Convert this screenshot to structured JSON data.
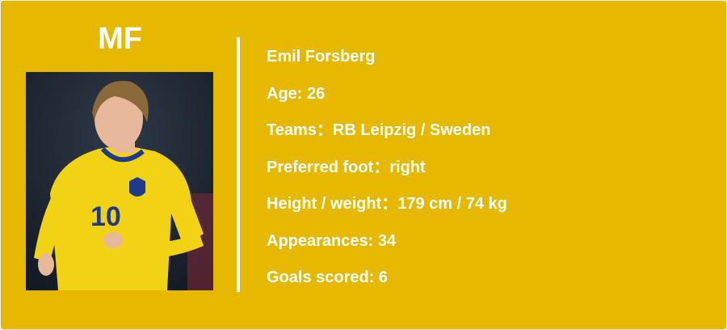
{
  "player": {
    "position": "MF",
    "name": "Emil Forsberg",
    "age": "Age: 26",
    "teams": "Teams：RB Leipzig / Sweden",
    "preferred_foot": "Preferred foot：right",
    "height_weight": "Height / weight：179 cm / 74 kg",
    "appearances": "Appearances: 34",
    "goals": "Goals scored: 6",
    "shirt_number": "10"
  },
  "colors": {
    "background": "#e6b800",
    "text": "#ffffff",
    "shirt": "#f2d214",
    "shirt_trim": "#1f3a8a"
  }
}
